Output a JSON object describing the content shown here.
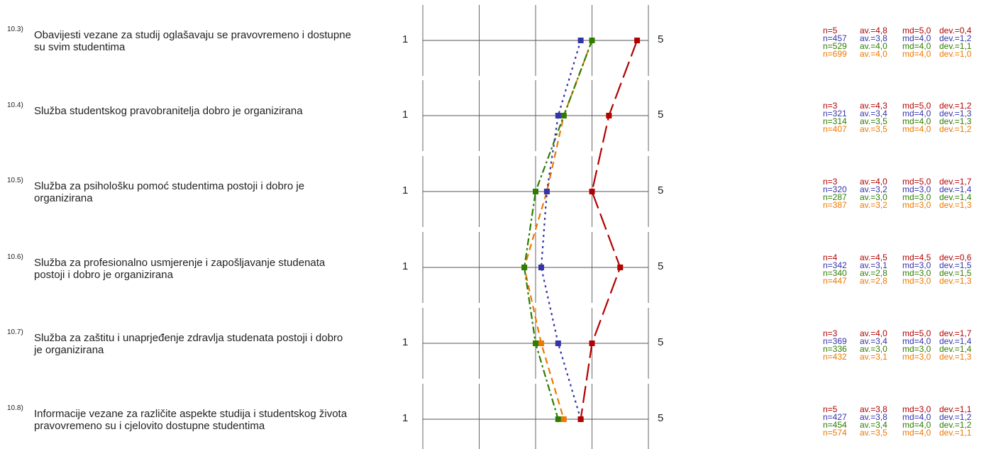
{
  "chart_data": {
    "type": "line",
    "scale": {
      "min": 1,
      "max": 5,
      "min_label": "1",
      "max_label": "5"
    },
    "colors": [
      "#b30000",
      "#3333aa",
      "#2e7d00",
      "#ee7700"
    ],
    "dashes": [
      "24,8",
      "3,5",
      "10,4,3,4",
      "9,6"
    ],
    "items": [
      {
        "num": "10.3)",
        "text": "Obavijesti vezane za studij oglašavaju se pravovremeno i dostupne su svim studentima",
        "stats": [
          {
            "n": "n=5",
            "av": "av.=4,8",
            "md": "md=5,0",
            "dev": "dev.=0,4"
          },
          {
            "n": "n=457",
            "av": "av.=3,8",
            "md": "md=4,0",
            "dev": "dev.=1,2"
          },
          {
            "n": "n=529",
            "av": "av.=4,0",
            "md": "md=4,0",
            "dev": "dev.=1,1"
          },
          {
            "n": "n=699",
            "av": "av.=4,0",
            "md": "md=4,0",
            "dev": "dev.=1,0"
          }
        ],
        "values": [
          4.8,
          3.8,
          4.0,
          4.0
        ]
      },
      {
        "num": "10.4)",
        "text": "Služba studentskog pravobranitelja dobro je organizirana",
        "stats": [
          {
            "n": "n=3",
            "av": "av.=4,3",
            "md": "md=5,0",
            "dev": "dev.=1,2"
          },
          {
            "n": "n=321",
            "av": "av.=3,4",
            "md": "md=4,0",
            "dev": "dev.=1,3"
          },
          {
            "n": "n=314",
            "av": "av.=3,5",
            "md": "md=4,0",
            "dev": "dev.=1,3"
          },
          {
            "n": "n=407",
            "av": "av.=3,5",
            "md": "md=4,0",
            "dev": "dev.=1,2"
          }
        ],
        "values": [
          4.3,
          3.4,
          3.5,
          3.5
        ]
      },
      {
        "num": "10.5)",
        "text": "Služba za psihološku pomoć studentima postoji i dobro je organizirana",
        "stats": [
          {
            "n": "n=3",
            "av": "av.=4,0",
            "md": "md=5,0",
            "dev": "dev.=1,7"
          },
          {
            "n": "n=320",
            "av": "av.=3,2",
            "md": "md=3,0",
            "dev": "dev.=1,4"
          },
          {
            "n": "n=287",
            "av": "av.=3,0",
            "md": "md=3,0",
            "dev": "dev.=1,4"
          },
          {
            "n": "n=387",
            "av": "av.=3,2",
            "md": "md=3,0",
            "dev": "dev.=1,3"
          }
        ],
        "values": [
          4.0,
          3.2,
          3.0,
          3.2
        ]
      },
      {
        "num": "10.6)",
        "text": "Služba za profesionalno usmjerenje i zapošljavanje studenata postoji i dobro je organizirana",
        "stats": [
          {
            "n": "n=4",
            "av": "av.=4,5",
            "md": "md=4,5",
            "dev": "dev.=0,6"
          },
          {
            "n": "n=342",
            "av": "av.=3,1",
            "md": "md=3,0",
            "dev": "dev.=1,5"
          },
          {
            "n": "n=340",
            "av": "av.=2,8",
            "md": "md=3,0",
            "dev": "dev.=1,5"
          },
          {
            "n": "n=447",
            "av": "av.=2,8",
            "md": "md=3,0",
            "dev": "dev.=1,3"
          }
        ],
        "values": [
          4.5,
          3.1,
          2.8,
          2.8
        ]
      },
      {
        "num": "10.7)",
        "text": "Služba za zaštitu i unaprjeđenje zdravlja studenata postoji i dobro je organizirana",
        "stats": [
          {
            "n": "n=3",
            "av": "av.=4,0",
            "md": "md=5,0",
            "dev": "dev.=1,7"
          },
          {
            "n": "n=369",
            "av": "av.=3,4",
            "md": "md=4,0",
            "dev": "dev.=1,4"
          },
          {
            "n": "n=336",
            "av": "av.=3,0",
            "md": "md=3,0",
            "dev": "dev.=1,4"
          },
          {
            "n": "n=432",
            "av": "av.=3,1",
            "md": "md=3,0",
            "dev": "dev.=1,3"
          }
        ],
        "values": [
          4.0,
          3.4,
          3.0,
          3.1
        ]
      },
      {
        "num": "10.8)",
        "text": "Informacije vezane za različite aspekte studija i studentskog života pravovremeno su i cjelovito dostupne studentima",
        "stats": [
          {
            "n": "n=5",
            "av": "av.=3,8",
            "md": "md=3,0",
            "dev": "dev.=1,1"
          },
          {
            "n": "n=427",
            "av": "av.=3,8",
            "md": "md=4,0",
            "dev": "dev.=1,2"
          },
          {
            "n": "n=454",
            "av": "av.=3,4",
            "md": "md=4,0",
            "dev": "dev.=1,2"
          },
          {
            "n": "n=574",
            "av": "av.=3,5",
            "md": "md=4,0",
            "dev": "dev.=1,1"
          }
        ],
        "values": [
          3.8,
          3.8,
          3.4,
          3.5
        ]
      }
    ]
  }
}
